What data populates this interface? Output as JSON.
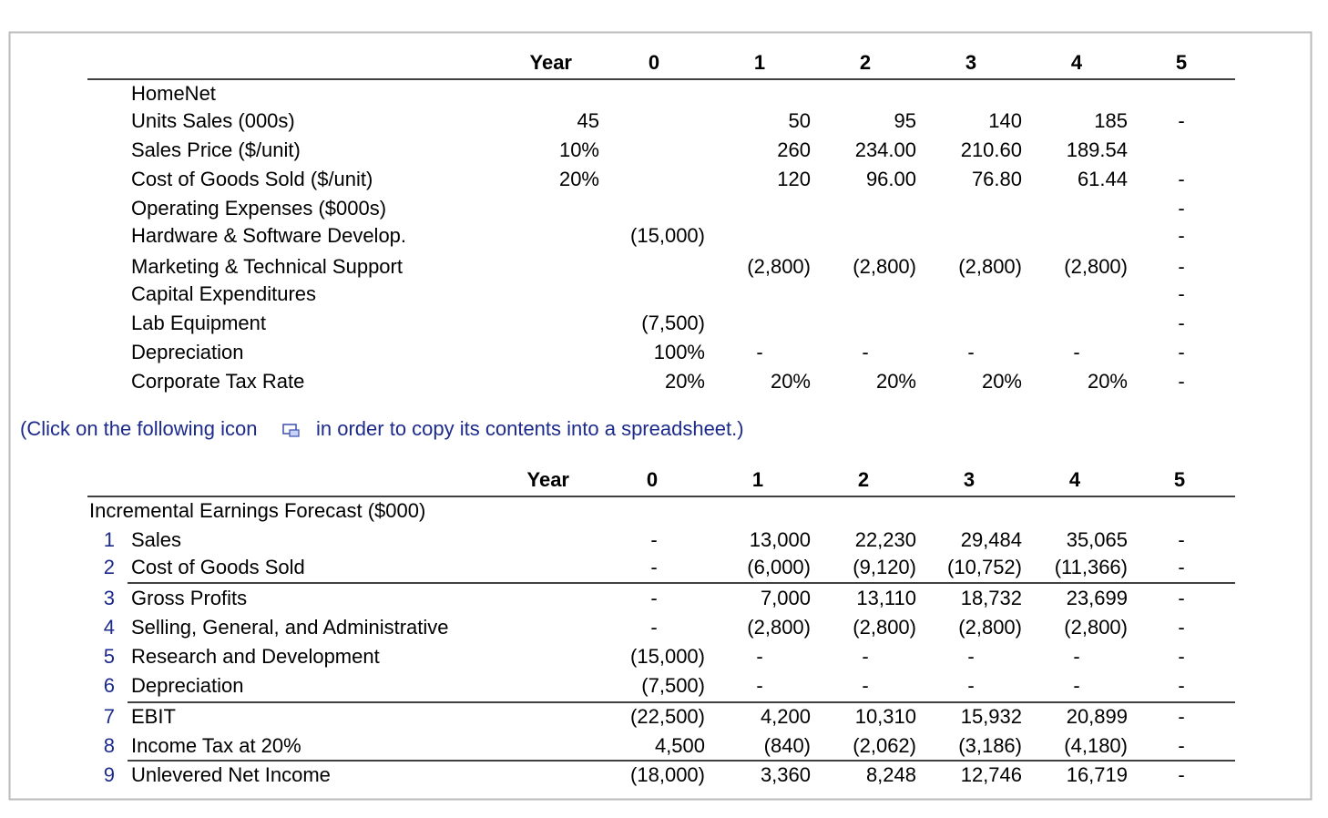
{
  "assumptions": {
    "header": [
      "Year",
      "0",
      "1",
      "2",
      "3",
      "4",
      "5"
    ],
    "rows": [
      {
        "label": "HomeNet",
        "cells": [
          null,
          null,
          null,
          null,
          null,
          null,
          null
        ]
      },
      {
        "label": "Units Sales (000s)",
        "cells": [
          "45",
          null,
          "50",
          "95",
          "140",
          "185",
          "-"
        ]
      },
      {
        "label": "Sales Price ($/unit)",
        "cells": [
          "10%",
          null,
          "260",
          "234.00",
          "210.60",
          "189.54",
          null
        ]
      },
      {
        "label": "Cost of Goods Sold ($/unit)",
        "cells": [
          "20%",
          null,
          "120",
          "96.00",
          "76.80",
          "61.44",
          "-"
        ]
      },
      {
        "label": "Operating Expenses ($000s)",
        "cells": [
          null,
          null,
          null,
          null,
          null,
          null,
          "-"
        ]
      },
      {
        "label": "Hardware & Software Develop.",
        "cells": [
          null,
          "(15,000)",
          null,
          null,
          null,
          null,
          "-"
        ]
      },
      {
        "label": "Marketing & Technical Support",
        "cells": [
          null,
          null,
          "(2,800)",
          "(2,800)",
          "(2,800)",
          "(2,800)",
          "-"
        ]
      },
      {
        "label": "Capital Expenditures",
        "cells": [
          null,
          null,
          null,
          null,
          null,
          null,
          "-"
        ]
      },
      {
        "label": "Lab Equipment",
        "cells": [
          null,
          "(7,500)",
          null,
          null,
          null,
          null,
          "-"
        ]
      },
      {
        "label": "Depreciation",
        "cells": [
          null,
          "100%",
          "-",
          "-",
          "-",
          "-",
          "-"
        ]
      },
      {
        "label": "Corporate Tax Rate",
        "cells": [
          null,
          "20%",
          "20%",
          "20%",
          "20%",
          "20%",
          "-"
        ]
      }
    ]
  },
  "note": {
    "before": "(Click on the following icon",
    "after": "in order to copy its contents into a spreadsheet.)"
  },
  "forecast": {
    "header": [
      "Year",
      "0",
      "1",
      "2",
      "3",
      "4",
      "5"
    ],
    "title": "Incremental Earnings Forecast ($000)",
    "rows": [
      {
        "num": "1",
        "label": "Sales",
        "cells": [
          "-",
          "13,000",
          "22,230",
          "29,484",
          "35,065",
          "-"
        ]
      },
      {
        "num": "2",
        "label": "Cost of Goods Sold",
        "cells": [
          "-",
          "(6,000)",
          "(9,120)",
          "(10,752)",
          "(11,366)",
          "-"
        ]
      },
      {
        "num": "3",
        "label": "Gross Profits",
        "cells": [
          "-",
          "7,000",
          "13,110",
          "18,732",
          "23,699",
          "-"
        ]
      },
      {
        "num": "4",
        "label": "Selling, General, and Administrative",
        "cells": [
          "-",
          "(2,800)",
          "(2,800)",
          "(2,800)",
          "(2,800)",
          "-"
        ]
      },
      {
        "num": "5",
        "label": "Research and Development",
        "cells": [
          "(15,000)",
          "-",
          "-",
          "-",
          "-",
          "-"
        ]
      },
      {
        "num": "6",
        "label": "Depreciation",
        "cells": [
          "(7,500)",
          "-",
          "-",
          "-",
          "-",
          "-"
        ]
      },
      {
        "num": "7",
        "label": "EBIT",
        "cells": [
          "(22,500)",
          "4,200",
          "10,310",
          "15,932",
          "20,899",
          "-"
        ]
      },
      {
        "num": "8",
        "label": "Income Tax at 20%",
        "cells": [
          "4,500",
          "(840)",
          "(2,062)",
          "(3,186)",
          "(4,180)",
          "-"
        ]
      },
      {
        "num": "9",
        "label": "Unlevered Net Income",
        "cells": [
          "(18,000)",
          "3,360",
          "8,248",
          "12,746",
          "16,719",
          "-"
        ]
      }
    ]
  }
}
